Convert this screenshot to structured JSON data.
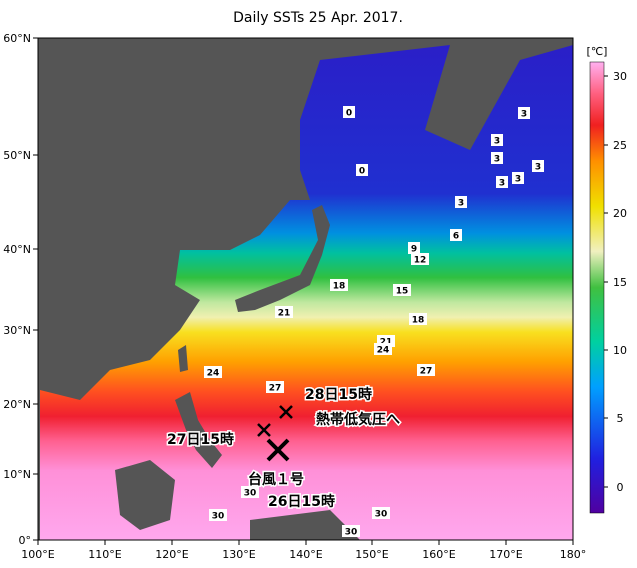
{
  "header": {
    "title": "Daily SSTs 25 Apr. 2017."
  },
  "lat_labels": [
    "60°N",
    "50°N",
    "40°N",
    "30°N",
    "20°N",
    "10°N",
    "0°"
  ],
  "lon_labels": [
    "100°E",
    "110°E",
    "120°E",
    "130°E",
    "140°E",
    "150°E",
    "160°E",
    "170°E",
    "180°"
  ],
  "colorbar": {
    "unit": "[℃]",
    "ticks": [
      "30",
      "25",
      "20",
      "15",
      "10",
      "5",
      "0"
    ]
  },
  "contour_labels": [
    "0",
    "0",
    "3",
    "3",
    "3",
    "3",
    "3",
    "3",
    "3",
    "6",
    "9",
    "12",
    "18",
    "15",
    "21",
    "18",
    "21",
    "24",
    "24",
    "27",
    "27",
    "30",
    "30",
    "30",
    "30"
  ],
  "annotations": {
    "pos_28": "28日15時",
    "note_28": "熱帯低気圧へ",
    "pos_27": "27日15時",
    "name": "台風１号",
    "pos_26": "26日15時"
  }
}
